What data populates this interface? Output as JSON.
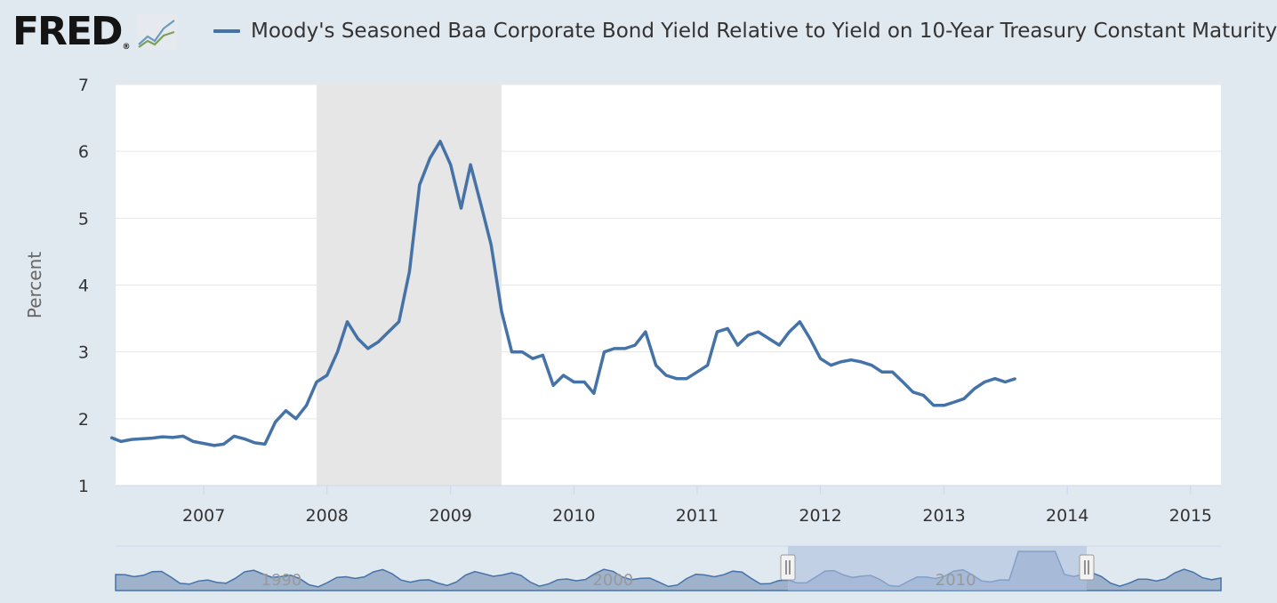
{
  "header": {
    "logo_text": "FRED",
    "logo_mark": "®",
    "graph_icon": "fred-line-graph-icon"
  },
  "colors": {
    "line": "#4572a7",
    "recession": "#e6e6e6",
    "background": "#e1e9f0",
    "plot_background": "#ffffff",
    "navigator_fill": "#9fb2cc",
    "navigator_selection": "#aec0de"
  },
  "chart_data": {
    "type": "line",
    "title": "",
    "ylabel": "Percent",
    "xlabel": "",
    "series": [
      {
        "name": "Moody's Seasoned Baa Corporate Bond Yield Relative to Yield on 10-Year Treasury Constant Maturity",
        "points": [
          [
            "2006-04-01",
            1.72
          ],
          [
            "2006-05-01",
            1.66
          ],
          [
            "2006-06-01",
            1.69
          ],
          [
            "2006-07-01",
            1.7
          ],
          [
            "2006-08-01",
            1.71
          ],
          [
            "2006-09-01",
            1.73
          ],
          [
            "2006-10-01",
            1.72
          ],
          [
            "2006-11-01",
            1.74
          ],
          [
            "2006-12-01",
            1.66
          ],
          [
            "2007-01-01",
            1.63
          ],
          [
            "2007-02-01",
            1.6
          ],
          [
            "2007-03-01",
            1.62
          ],
          [
            "2007-04-01",
            1.74
          ],
          [
            "2007-05-01",
            1.7
          ],
          [
            "2007-06-01",
            1.64
          ],
          [
            "2007-07-01",
            1.62
          ],
          [
            "2007-08-01",
            1.95
          ],
          [
            "2007-09-01",
            2.12
          ],
          [
            "2007-10-01",
            2.0
          ],
          [
            "2007-11-01",
            2.2
          ],
          [
            "2007-12-01",
            2.55
          ],
          [
            "2008-01-01",
            2.65
          ],
          [
            "2008-02-01",
            3.0
          ],
          [
            "2008-03-01",
            3.45
          ],
          [
            "2008-04-01",
            3.2
          ],
          [
            "2008-05-01",
            3.05
          ],
          [
            "2008-06-01",
            3.15
          ],
          [
            "2008-07-01",
            3.3
          ],
          [
            "2008-08-01",
            3.45
          ],
          [
            "2008-09-01",
            4.2
          ],
          [
            "2008-10-01",
            5.5
          ],
          [
            "2008-11-01",
            5.9
          ],
          [
            "2008-12-01",
            6.15
          ],
          [
            "2009-01-01",
            5.8
          ],
          [
            "2009-02-01",
            5.15
          ],
          [
            "2009-03-01",
            5.8
          ],
          [
            "2009-04-01",
            5.2
          ],
          [
            "2009-05-01",
            4.6
          ],
          [
            "2009-06-01",
            3.6
          ],
          [
            "2009-07-01",
            3.0
          ],
          [
            "2009-08-01",
            3.0
          ],
          [
            "2009-09-01",
            2.9
          ],
          [
            "2009-10-01",
            2.95
          ],
          [
            "2009-11-01",
            2.5
          ],
          [
            "2009-12-01",
            2.65
          ],
          [
            "2010-01-01",
            2.55
          ],
          [
            "2010-02-01",
            2.55
          ],
          [
            "2010-03-01",
            2.38
          ],
          [
            "2010-04-01",
            3.0
          ],
          [
            "2010-05-01",
            3.05
          ],
          [
            "2010-06-01",
            3.05
          ],
          [
            "2010-07-01",
            3.1
          ],
          [
            "2010-08-01",
            3.3
          ],
          [
            "2010-09-01",
            2.8
          ],
          [
            "2010-10-01",
            2.65
          ],
          [
            "2010-11-01",
            2.6
          ],
          [
            "2010-12-01",
            2.6
          ],
          [
            "2011-01-01",
            2.7
          ],
          [
            "2011-02-01",
            2.8
          ],
          [
            "2011-03-01",
            3.3
          ],
          [
            "2011-04-01",
            3.35
          ],
          [
            "2011-05-01",
            3.1
          ],
          [
            "2011-06-01",
            3.25
          ],
          [
            "2011-07-01",
            3.3
          ],
          [
            "2011-08-01",
            3.2
          ],
          [
            "2011-09-01",
            3.1
          ],
          [
            "2011-10-01",
            3.3
          ],
          [
            "2011-11-01",
            3.45
          ],
          [
            "2011-12-01",
            3.2
          ],
          [
            "2012-01-01",
            2.9
          ],
          [
            "2012-02-01",
            2.8
          ],
          [
            "2012-03-01",
            2.85
          ],
          [
            "2012-04-01",
            2.88
          ],
          [
            "2012-05-01",
            2.85
          ],
          [
            "2012-06-01",
            2.8
          ],
          [
            "2012-07-01",
            2.7
          ],
          [
            "2012-08-01",
            2.7
          ],
          [
            "2012-09-01",
            2.55
          ],
          [
            "2012-10-01",
            2.4
          ],
          [
            "2012-11-01",
            2.35
          ],
          [
            "2012-12-01",
            2.2
          ],
          [
            "2013-01-01",
            2.2
          ],
          [
            "2013-02-01",
            2.25
          ],
          [
            "2013-03-01",
            2.3
          ],
          [
            "2013-04-01",
            2.45
          ],
          [
            "2013-05-01",
            2.55
          ],
          [
            "2013-06-01",
            2.6
          ],
          [
            "2013-07-01",
            2.55
          ],
          [
            "2013-08-01",
            2.6
          ]
        ]
      }
    ],
    "yticks": [
      1,
      2,
      3,
      4,
      5,
      6,
      7
    ],
    "ylim": [
      1,
      7
    ],
    "xticks": [
      "2007",
      "2008",
      "2009",
      "2010",
      "2011",
      "2012",
      "2013",
      "2014",
      "2015"
    ],
    "xlim": [
      "2006-04-15",
      "2015-04-01"
    ],
    "recession": {
      "start": "2007-12-01",
      "end": "2009-06-01"
    },
    "grid": true,
    "legend": "top",
    "navigator": {
      "labels": [
        "1990",
        "2000",
        "2010"
      ],
      "selected_range": [
        "2006-04-15",
        "2015-04-01"
      ]
    }
  }
}
